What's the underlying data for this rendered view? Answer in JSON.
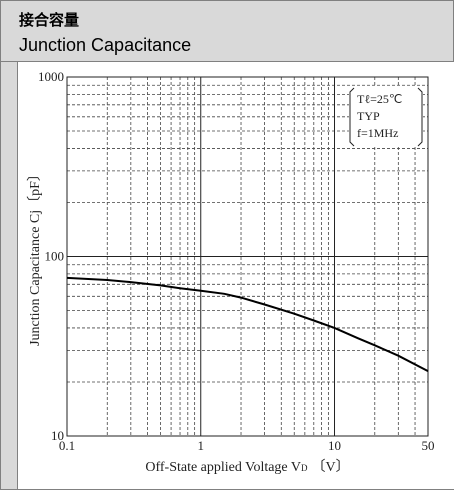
{
  "header": {
    "title_jp": "接合容量",
    "title_en": "Junction Capacitance"
  },
  "chart_data": {
    "type": "line",
    "xscale": "log",
    "yscale": "log",
    "xlim": [
      0.1,
      50
    ],
    "ylim": [
      10,
      1000
    ],
    "xticks": [
      {
        "value": 0.1,
        "label": "0.1"
      },
      {
        "value": 1,
        "label": "1"
      },
      {
        "value": 10,
        "label": "10"
      },
      {
        "value": 50,
        "label": "50"
      }
    ],
    "yticks": [
      {
        "value": 10,
        "label": "10"
      },
      {
        "value": 100,
        "label": "100"
      },
      {
        "value": 1000,
        "label": "1000"
      }
    ],
    "xlabel": "Off-State applied Voltage V",
    "xlabel_sub": "D",
    "xlabel_unit": "〔V〕",
    "ylabel": "Junction Capacitance Cj〔pF〕",
    "grid": true,
    "annotation": [
      "Tℓ=25℃",
      "TYP",
      "f=1MHz"
    ],
    "series": [
      {
        "x": [
          0.1,
          0.2,
          0.3,
          0.5,
          0.7,
          1,
          1.5,
          2,
          3,
          5,
          7,
          10,
          15,
          20,
          30,
          50
        ],
        "y": [
          76,
          74,
          72,
          69,
          66.5,
          64.5,
          62,
          59,
          54,
          48,
          44,
          40,
          35,
          32,
          28,
          23
        ]
      }
    ]
  }
}
